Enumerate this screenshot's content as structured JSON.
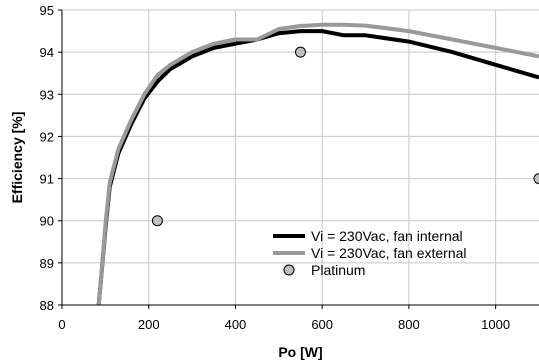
{
  "chart_data": {
    "type": "line",
    "xlabel": "Po [W]",
    "ylabel": "Efficiency [%]",
    "xlim": [
      0,
      1100
    ],
    "ylim": [
      88,
      95
    ],
    "xticks": [
      0,
      200,
      400,
      600,
      800,
      1000
    ],
    "yticks": [
      88,
      89,
      90,
      91,
      92,
      93,
      94,
      95
    ],
    "grid": true,
    "legend_position": "bottom-right",
    "series": [
      {
        "name": "Vi = 230Vac, fan internal",
        "color": "#000000",
        "x": [
          80,
          90,
          100,
          110,
          130,
          160,
          190,
          220,
          250,
          300,
          350,
          400,
          450,
          500,
          550,
          600,
          650,
          700,
          800,
          900,
          1000,
          1100
        ],
        "y": [
          87.5,
          88.6,
          89.8,
          90.8,
          91.6,
          92.3,
          92.9,
          93.3,
          93.6,
          93.9,
          94.1,
          94.2,
          94.3,
          94.45,
          94.5,
          94.5,
          94.4,
          94.4,
          94.25,
          94.0,
          93.7,
          93.4
        ]
      },
      {
        "name": "Vi = 230Vac, fan external",
        "color": "#999999",
        "x": [
          80,
          90,
          100,
          110,
          130,
          160,
          190,
          220,
          250,
          300,
          350,
          400,
          450,
          500,
          550,
          600,
          650,
          700,
          800,
          900,
          1000,
          1100
        ],
        "y": [
          87.5,
          88.6,
          89.9,
          90.9,
          91.7,
          92.4,
          93.0,
          93.45,
          93.7,
          94.0,
          94.2,
          94.3,
          94.3,
          94.55,
          94.62,
          94.65,
          94.65,
          94.63,
          94.5,
          94.3,
          94.1,
          93.9
        ]
      },
      {
        "name": "Platinum",
        "type": "scatter",
        "color": "#c0c0c0",
        "x": [
          220,
          550,
          1100
        ],
        "y": [
          90,
          94,
          91
        ]
      }
    ]
  }
}
